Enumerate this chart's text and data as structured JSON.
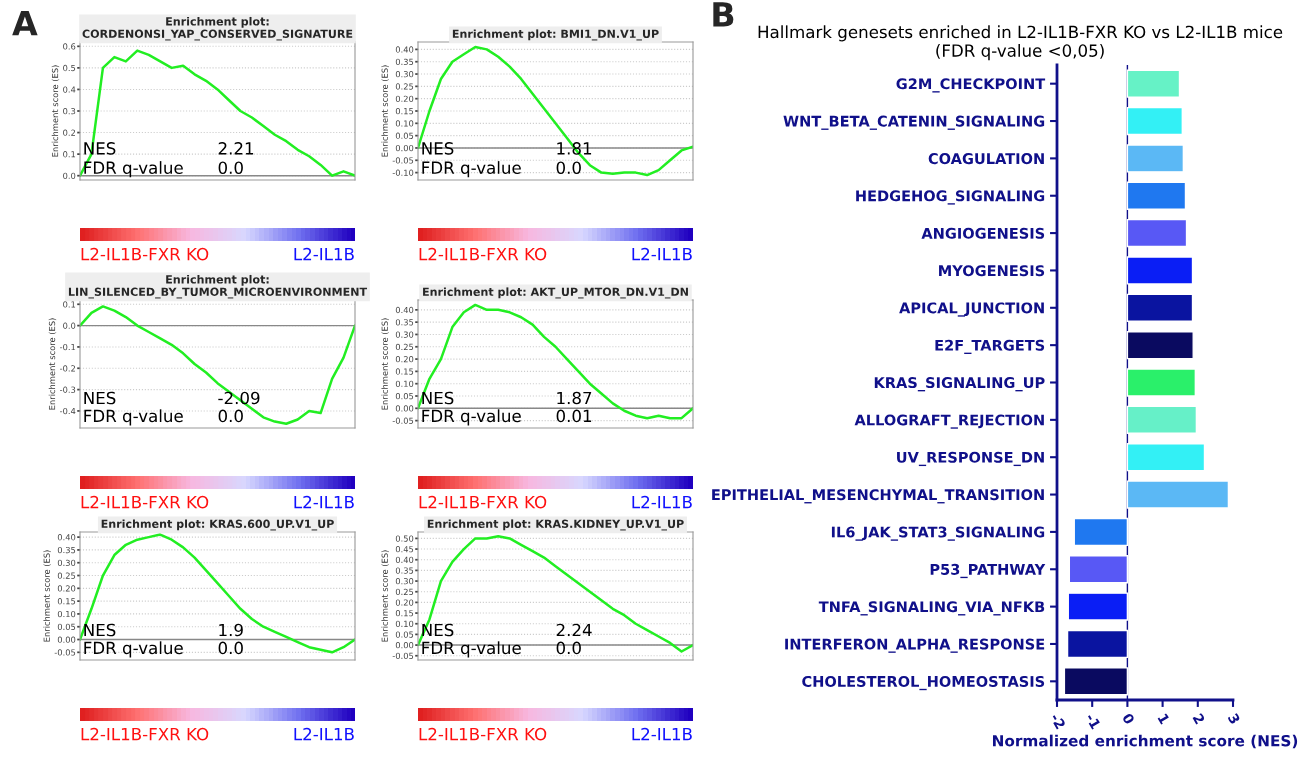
{
  "chart_data": [
    {
      "type": "line",
      "title": "Enrichment plot:\nCORDENONSI_YAP_CONSERVED_SIGNATURE",
      "ylabel": "Enrichment score (ES)",
      "categories": [
        null,
        null,
        null,
        null,
        null,
        null,
        null,
        null,
        null,
        null,
        null,
        null,
        null,
        null,
        null,
        null,
        null,
        null,
        null,
        null,
        null,
        null,
        null,
        null,
        null
      ],
      "series": [
        {
          "color": "#22ee22",
          "values": [
            0,
            0.1,
            0.5,
            0.55,
            0.53,
            0.58,
            0.56,
            0.53,
            0.5,
            0.51,
            0.47,
            0.44,
            0.4,
            0.35,
            0.3,
            0.27,
            0.23,
            0.19,
            0.16,
            0.12,
            0.09,
            0.05,
            0.0,
            0.02,
            0.0
          ]
        }
      ],
      "ylim": [
        -0.02,
        0.62
      ],
      "yticks": [
        {
          "value": 0,
          "label": "0.0"
        },
        {
          "value": 0.1,
          "label": "0.1"
        },
        {
          "value": 0.2,
          "label": "0.2"
        },
        {
          "value": 0.3,
          "label": "0.3"
        },
        {
          "value": 0.4,
          "label": "0.4"
        },
        {
          "value": 0.5,
          "label": "0.5"
        },
        {
          "value": 0.6,
          "label": "0.6"
        }
      ],
      "grid": "y",
      "ref_lines": [
        {
          "axis": "y",
          "value": 0
        }
      ],
      "annotations": [
        "NES",
        "2.21",
        "FDR q-value",
        "0.0",
        "L2-IL1B-FXR KO",
        "L2-IL1B",
        "A"
      ]
    },
    {
      "type": "line",
      "title": "Enrichment plot: BMI1_DN.V1_UP",
      "ylabel": "Enrichment score (ES)",
      "categories": [
        null,
        null,
        null,
        null,
        null,
        null,
        null,
        null,
        null,
        null,
        null,
        null,
        null,
        null,
        null,
        null,
        null,
        null,
        null,
        null,
        null,
        null,
        null,
        null,
        null
      ],
      "series": [
        {
          "color": "#22ee22",
          "values": [
            0,
            0.15,
            0.28,
            0.35,
            0.38,
            0.41,
            0.4,
            0.37,
            0.33,
            0.28,
            0.22,
            0.16,
            0.1,
            0.04,
            -0.02,
            -0.07,
            -0.1,
            -0.105,
            -0.1,
            -0.1,
            -0.11,
            -0.09,
            -0.05,
            -0.01,
            0.005
          ]
        }
      ],
      "ylim": [
        -0.13,
        0.43
      ],
      "yticks": [
        {
          "value": -0.1,
          "label": "-0.10"
        },
        {
          "value": -0.05,
          "label": "-0.05"
        },
        {
          "value": 0,
          "label": "0.00"
        },
        {
          "value": 0.05,
          "label": "0.05"
        },
        {
          "value": 0.1,
          "label": "0.10"
        },
        {
          "value": 0.15,
          "label": "0.15"
        },
        {
          "value": 0.2,
          "label": "0.20"
        },
        {
          "value": 0.25,
          "label": "0.25"
        },
        {
          "value": 0.3,
          "label": "0.30"
        },
        {
          "value": 0.35,
          "label": "0.35"
        },
        {
          "value": 0.4,
          "label": "0.40"
        }
      ],
      "grid": "y",
      "ref_lines": [
        {
          "axis": "y",
          "value": 0
        }
      ],
      "annotations": [
        "NES",
        "1.81",
        "FDR q-value",
        "0.0",
        "L2-IL1B-FXR KO",
        "L2-IL1B"
      ]
    },
    {
      "type": "line",
      "title": "Enrichment plot:\nLIN_SILENCED_BY_TUMOR_MICROENVIRONMENT",
      "ylabel": "Enrichment score (ES)",
      "categories": [
        null,
        null,
        null,
        null,
        null,
        null,
        null,
        null,
        null,
        null,
        null,
        null,
        null,
        null,
        null,
        null,
        null,
        null,
        null,
        null,
        null,
        null,
        null,
        null,
        null
      ],
      "series": [
        {
          "color": "#22ee22",
          "values": [
            0,
            0.06,
            0.09,
            0.07,
            0.04,
            0.0,
            -0.03,
            -0.06,
            -0.09,
            -0.13,
            -0.18,
            -0.22,
            -0.27,
            -0.31,
            -0.35,
            -0.39,
            -0.43,
            -0.45,
            -0.46,
            -0.44,
            -0.4,
            -0.41,
            -0.25,
            -0.15,
            0.0
          ]
        }
      ],
      "ylim": [
        -0.48,
        0.12
      ],
      "yticks": [
        {
          "value": -0.4,
          "label": "-0.4"
        },
        {
          "value": -0.3,
          "label": "-0.3"
        },
        {
          "value": -0.2,
          "label": "-0.2"
        },
        {
          "value": -0.1,
          "label": "-0.1"
        },
        {
          "value": 0,
          "label": "0.0"
        },
        {
          "value": 0.1,
          "label": "0.1"
        }
      ],
      "grid": "y",
      "ref_lines": [
        {
          "axis": "y",
          "value": 0
        }
      ],
      "annotations": [
        "NES",
        "-2.09",
        "FDR q-value",
        "0.0",
        "L2-IL1B-FXR KO",
        "L2-IL1B"
      ]
    },
    {
      "type": "line",
      "title": "Enrichment plot: AKT_UP_MTOR_DN.V1_DN",
      "ylabel": "Enrichment score (ES)",
      "categories": [
        null,
        null,
        null,
        null,
        null,
        null,
        null,
        null,
        null,
        null,
        null,
        null,
        null,
        null,
        null,
        null,
        null,
        null,
        null,
        null,
        null,
        null,
        null,
        null,
        null
      ],
      "series": [
        {
          "color": "#22ee22",
          "values": [
            0,
            0.12,
            0.2,
            0.33,
            0.39,
            0.42,
            0.4,
            0.4,
            0.39,
            0.37,
            0.34,
            0.29,
            0.25,
            0.2,
            0.15,
            0.1,
            0.06,
            0.02,
            -0.01,
            -0.03,
            -0.04,
            -0.03,
            -0.04,
            -0.04,
            0.0
          ]
        }
      ],
      "ylim": [
        -0.08,
        0.44
      ],
      "yticks": [
        {
          "value": -0.05,
          "label": "-0.05"
        },
        {
          "value": 0,
          "label": "0.00"
        },
        {
          "value": 0.05,
          "label": "0.05"
        },
        {
          "value": 0.1,
          "label": "0.10"
        },
        {
          "value": 0.15,
          "label": "0.15"
        },
        {
          "value": 0.2,
          "label": "0.20"
        },
        {
          "value": 0.25,
          "label": "0.25"
        },
        {
          "value": 0.3,
          "label": "0.30"
        },
        {
          "value": 0.35,
          "label": "0.35"
        },
        {
          "value": 0.4,
          "label": "0.40"
        }
      ],
      "grid": "y",
      "ref_lines": [
        {
          "axis": "y",
          "value": 0
        }
      ],
      "annotations": [
        "NES",
        "1.87",
        "FDR q-value",
        "0.01",
        "L2-IL1B-FXR KO",
        "L2-IL1B"
      ]
    },
    {
      "type": "line",
      "title": "Enrichment plot: KRAS.600_UP.V1_UP",
      "ylabel": "Enrichment score (ES)",
      "categories": [
        null,
        null,
        null,
        null,
        null,
        null,
        null,
        null,
        null,
        null,
        null,
        null,
        null,
        null,
        null,
        null,
        null,
        null,
        null,
        null,
        null,
        null,
        null,
        null,
        null
      ],
      "series": [
        {
          "color": "#22ee22",
          "values": [
            0,
            0.12,
            0.25,
            0.33,
            0.37,
            0.39,
            0.4,
            0.41,
            0.39,
            0.36,
            0.32,
            0.27,
            0.22,
            0.17,
            0.12,
            0.08,
            0.05,
            0.03,
            0.01,
            -0.01,
            -0.03,
            -0.04,
            -0.05,
            -0.03,
            0.0
          ]
        }
      ],
      "ylim": [
        -0.08,
        0.42
      ],
      "yticks": [
        {
          "value": -0.05,
          "label": "-0.05"
        },
        {
          "value": 0,
          "label": "0.00"
        },
        {
          "value": 0.05,
          "label": "0.05"
        },
        {
          "value": 0.1,
          "label": "0.10"
        },
        {
          "value": 0.15,
          "label": "0.15"
        },
        {
          "value": 0.2,
          "label": "0.20"
        },
        {
          "value": 0.25,
          "label": "0.25"
        },
        {
          "value": 0.3,
          "label": "0.30"
        },
        {
          "value": 0.35,
          "label": "0.35"
        },
        {
          "value": 0.4,
          "label": "0.40"
        }
      ],
      "grid": "y",
      "ref_lines": [
        {
          "axis": "y",
          "value": 0
        }
      ],
      "annotations": [
        "NES",
        "1.9",
        "FDR q-value",
        "0.0",
        "L2-IL1B-FXR KO",
        "L2-IL1B"
      ]
    },
    {
      "type": "line",
      "title": "Enrichment plot: KRAS.KIDNEY_UP.V1_UP",
      "ylabel": "Enrichment score (ES)",
      "categories": [
        null,
        null,
        null,
        null,
        null,
        null,
        null,
        null,
        null,
        null,
        null,
        null,
        null,
        null,
        null,
        null,
        null,
        null,
        null,
        null,
        null,
        null,
        null,
        null,
        null
      ],
      "series": [
        {
          "color": "#22ee22",
          "values": [
            0,
            0.12,
            0.3,
            0.39,
            0.45,
            0.5,
            0.5,
            0.51,
            0.5,
            0.47,
            0.44,
            0.41,
            0.37,
            0.33,
            0.29,
            0.25,
            0.21,
            0.17,
            0.14,
            0.1,
            0.07,
            0.04,
            0.01,
            -0.03,
            0.0
          ]
        }
      ],
      "ylim": [
        -0.07,
        0.53
      ],
      "yticks": [
        {
          "value": -0.05,
          "label": "-0.05"
        },
        {
          "value": 0,
          "label": "0.00"
        },
        {
          "value": 0.05,
          "label": "0.05"
        },
        {
          "value": 0.1,
          "label": "0.10"
        },
        {
          "value": 0.15,
          "label": "0.15"
        },
        {
          "value": 0.2,
          "label": "0.20"
        },
        {
          "value": 0.25,
          "label": "0.25"
        },
        {
          "value": 0.3,
          "label": "0.30"
        },
        {
          "value": 0.35,
          "label": "0.35"
        },
        {
          "value": 0.4,
          "label": "0.40"
        },
        {
          "value": 0.45,
          "label": "0.45"
        },
        {
          "value": 0.5,
          "label": "0.50"
        }
      ],
      "grid": "y",
      "ref_lines": [
        {
          "axis": "y",
          "value": 0
        }
      ],
      "annotations": [
        "NES",
        "2.24",
        "FDR q-value",
        "0.0",
        "L2-IL1B-FXR KO",
        "L2-IL1B"
      ]
    },
    {
      "type": "bar",
      "orientation": "horizontal",
      "title": "Hallmark genesets enriched in L2-IL1B-FXR KO vs L2-IL1B mice\n(FDR q-value <0,05)",
      "xlabel": "Normalized enrichment score (NES)",
      "categories": [
        "G2M_CHECKPOINT",
        "WNT_BETA_CATENIN_SIGNALING",
        "COAGULATION",
        "HEDGEHOG_SIGNALING",
        "ANGIOGENESIS",
        "MYOGENESIS",
        "APICAL_JUNCTION",
        "E2F_TARGETS",
        "KRAS_SIGNALING_UP",
        "ALLOGRAFT_REJECTION",
        "UV_RESPONSE_DN",
        "EPITHELIAL_MESENCHYMAL_TRANSITION",
        "IL6_JAK_STAT3_SIGNALING",
        "P53_PATHWAY",
        "TNFA_SIGNALING_VIA_NFKB",
        "INTERFERON_ALPHA_RESPONSE",
        "CHOLESTEROL_HOMEOSTASIS"
      ],
      "values": [
        1.48,
        1.56,
        1.59,
        1.65,
        1.68,
        1.85,
        1.85,
        1.87,
        1.93,
        1.96,
        2.19,
        2.87,
        -1.51,
        -1.65,
        -1.68,
        -1.7,
        -1.79
      ],
      "colors": [
        "#66f2c6",
        "#33f0f5",
        "#5bb8f5",
        "#1f78f0",
        "#5858f5",
        "#0a1ef5",
        "#0a14a0",
        "#0a0a60",
        "#2af06a",
        "#66f0c8",
        "#33f0f5",
        "#5bb8f5",
        "#1f78f0",
        "#5858f5",
        "#0a1ef5",
        "#0a14a0",
        "#0a0a60"
      ],
      "xlim": [
        -2,
        3
      ],
      "xticks": [
        -2,
        -1,
        0,
        1,
        2,
        3
      ],
      "grid": false,
      "ref_lines": [
        {
          "axis": "x",
          "value": 0,
          "color": "#10108a"
        }
      ],
      "annotations": [
        "B"
      ]
    }
  ]
}
